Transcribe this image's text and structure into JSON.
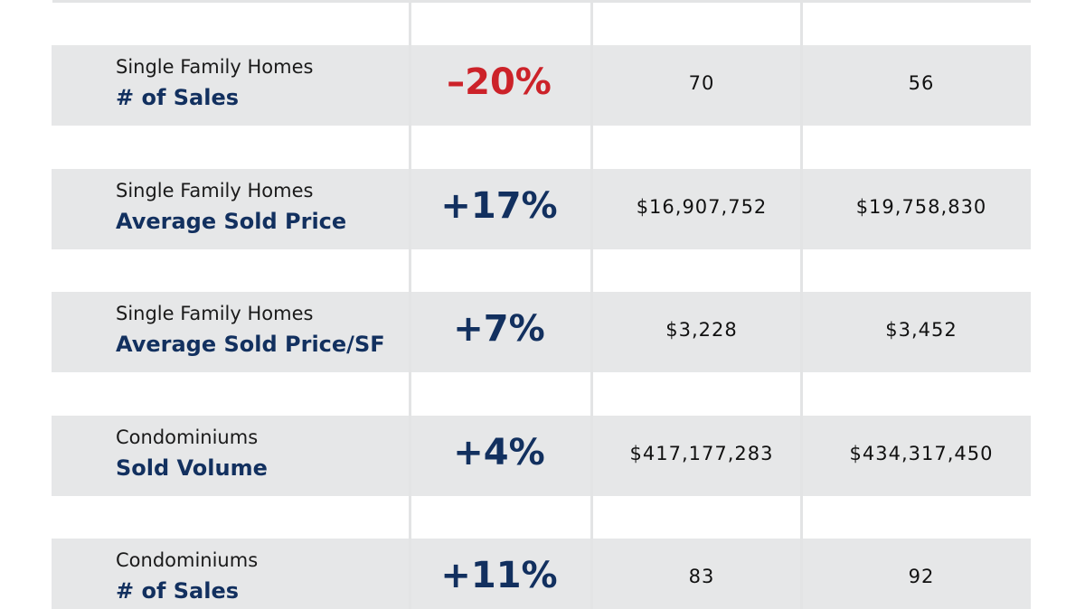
{
  "rows": [
    {
      "category": "Single Family Homes",
      "metric": "# of Sales",
      "change": "–20%",
      "change_color": "#cc2229",
      "value_1": "70",
      "value_2": "56"
    },
    {
      "category": "Single Family Homes",
      "metric": "Average Sold Price",
      "change": "+17%",
      "change_color": "#12305f",
      "value_1": "$16,907,752",
      "value_2": "$19,758,830"
    },
    {
      "category": "Single Family Homes",
      "metric": "Average Sold Price/SF",
      "change": "+7%",
      "change_color": "#12305f",
      "value_1": "$3,228",
      "value_2": "$3,452"
    },
    {
      "category": "Condominiums",
      "metric": "Sold Volume",
      "change": "+4%",
      "change_color": "#12305f",
      "value_1": "$417,177,283",
      "value_2": "$434,317,450"
    },
    {
      "category": "Condominiums",
      "metric": "# of Sales",
      "change": "+11%",
      "change_color": "#12305f",
      "value_1": "83",
      "value_2": "92"
    }
  ]
}
